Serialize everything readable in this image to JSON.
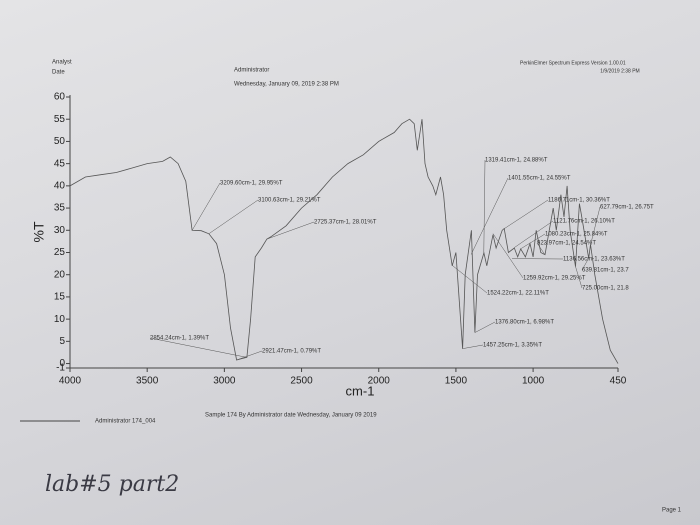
{
  "header": {
    "analyst": "Analyst",
    "date": "Date",
    "user": "Administrator",
    "datetime": "Wednesday, January 09, 2019 2:38 PM",
    "software": "PerkinElmer Spectrum Express Version 1.00.01",
    "software_date": "1/9/2019 2:38 PM"
  },
  "chart_data": {
    "type": "line",
    "xlabel": "cm-1",
    "ylabel": "%T",
    "xlim": [
      4000,
      450
    ],
    "ylim": [
      -1,
      60
    ],
    "xticks": [
      4000,
      3500,
      3000,
      2500,
      2000,
      1500,
      1000,
      450
    ],
    "yticks": [
      -1,
      0,
      5,
      10,
      15,
      20,
      25,
      30,
      35,
      40,
      45,
      50,
      55,
      60
    ],
    "series": [
      {
        "name": "174_004",
        "color": "#555555",
        "x": [
          4000,
          3900,
          3800,
          3700,
          3600,
          3500,
          3400,
          3350,
          3300,
          3250,
          3209,
          3150,
          3100,
          3050,
          3000,
          2960,
          2921,
          2900,
          2854,
          2830,
          2800,
          2760,
          2725,
          2700,
          2600,
          2500,
          2400,
          2300,
          2200,
          2100,
          2000,
          1900,
          1850,
          1800,
          1770,
          1750,
          1720,
          1700,
          1680,
          1650,
          1630,
          1600,
          1580,
          1560,
          1524,
          1500,
          1457,
          1440,
          1420,
          1400,
          1377,
          1360,
          1319,
          1300,
          1260,
          1240,
          1200,
          1187,
          1160,
          1122,
          1100,
          1080,
          1050,
          1020,
          1000,
          980,
          950,
          923,
          900,
          870,
          850,
          820,
          800,
          780,
          760,
          725,
          700,
          690,
          640,
          628,
          600,
          550,
          500,
          450
        ],
        "values": [
          40,
          42,
          42.5,
          43,
          44,
          45,
          45.5,
          46.5,
          45,
          41,
          30,
          29.9,
          29.2,
          27,
          20,
          8,
          0.8,
          1,
          1.4,
          10,
          24,
          26,
          28,
          28.5,
          31,
          35,
          38,
          42,
          45,
          47,
          50,
          52,
          54,
          55,
          54,
          48,
          55,
          45,
          42,
          40,
          38,
          42,
          38,
          30,
          22,
          25,
          3.35,
          20,
          25,
          30,
          7,
          20,
          24.9,
          22,
          29,
          26,
          30,
          30.4,
          25,
          26,
          24,
          25.8,
          24,
          27,
          24,
          30,
          25,
          24.5,
          29,
          35,
          30,
          38,
          33,
          40,
          30,
          21.8,
          36,
          34,
          23.7,
          26.8,
          20,
          10,
          3,
          0
        ]
      }
    ],
    "annotations": [
      {
        "x": 3209.6,
        "y": 29.95,
        "label": "3209.60cm-1, 29.95%T"
      },
      {
        "x": 3100.63,
        "y": 29.21,
        "label": "3100.63cm-1, 29.21%T"
      },
      {
        "x": 2725.37,
        "y": 28.01,
        "label": "2725.37cm-1, 28.01%T"
      },
      {
        "x": 2854.24,
        "y": 1.39,
        "label": "2854.24cm-1, 1.39%T"
      },
      {
        "x": 2921.47,
        "y": 0.79,
        "label": "2921.47cm-1, 0.79%T"
      },
      {
        "x": 1319.41,
        "y": 24.88,
        "label": "1319.41cm-1, 24.88%T"
      },
      {
        "x": 1401.55,
        "y": 24.55,
        "label": "1401.55cm-1, 24.55%T"
      },
      {
        "x": 1186.71,
        "y": 30.36,
        "label": "1186.71cm-1, 30.36%T"
      },
      {
        "x": 627.79,
        "y": 26.75,
        "label": "627.79cm-1, 26.75T"
      },
      {
        "x": 1121.76,
        "y": 26.1,
        "label": "1121.76cm-1, 26.10%T"
      },
      {
        "x": 1080.23,
        "y": 25.84,
        "label": "1080.23cm-1, 25.84%T"
      },
      {
        "x": 923.97,
        "y": 24.54,
        "label": "923.97cm-1, 24.54%T"
      },
      {
        "x": 1136.56,
        "y": 23.63,
        "label": "1136.56cm-1, 23.63%T"
      },
      {
        "x": 639.81,
        "y": 23.7,
        "label": "639.81cm-1, 23.7"
      },
      {
        "x": 1259.92,
        "y": 29.25,
        "label": "1259.92cm-1, 29.25%T"
      },
      {
        "x": 725.0,
        "y": 21.8,
        "label": "725.00cm-1, 21.8"
      },
      {
        "x": 1524.22,
        "y": 22.11,
        "label": "1524.22cm-1, 22.11%T"
      },
      {
        "x": 1376.8,
        "y": 6.98,
        "label": "1376.80cm-1, 6.98%T"
      },
      {
        "x": 1457.25,
        "y": 3.35,
        "label": "1457.25cm-1, 3.35%T"
      }
    ]
  },
  "footer": {
    "sample_id": "Administrator 174_004",
    "sample_desc": "Sample 174 By Administrator date Wednesday, January 09 2019",
    "handwritten": "lab#5 part2",
    "page": "Page 1"
  }
}
